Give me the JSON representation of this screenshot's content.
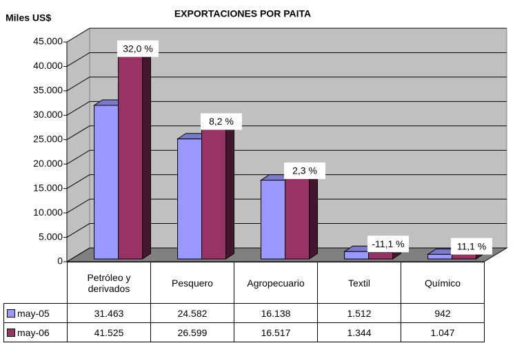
{
  "chart_data": {
    "type": "bar3d",
    "title": "EXPORTACIONES POR PAITA",
    "y_label": "Miles US$",
    "categories": [
      "Petróleo y derivados",
      "Pesquero",
      "Agropecuario",
      "Textil",
      "Químico"
    ],
    "series": [
      {
        "name": "may-05",
        "color": "#9999ff",
        "values": [
          31463,
          24582,
          16138,
          1512,
          942
        ],
        "value_labels": [
          "31.463",
          "24.582",
          "16.138",
          "1.512",
          "942"
        ]
      },
      {
        "name": "may-06",
        "color": "#993366",
        "values": [
          41525,
          26599,
          16517,
          1344,
          1047
        ],
        "value_labels": [
          "41.525",
          "26.599",
          "16.517",
          "1.344",
          "1.047"
        ]
      }
    ],
    "annotations": [
      "32,0 %",
      "8,2 %",
      "2,3 %",
      "-11,1 %",
      "11,1 %"
    ],
    "ylim": [
      0,
      45000
    ],
    "yticks": [
      0,
      {
        "value": 5000,
        "label": "5.000"
      },
      {
        "value": 10000,
        "label": "10.000"
      },
      {
        "value": 15000,
        "label": "15.000"
      },
      {
        "value": 20000,
        "label": "20.000"
      },
      {
        "value": 25000,
        "label": "25.000"
      },
      {
        "value": 30000,
        "label": "30.000"
      },
      {
        "value": 35000,
        "label": "35.000"
      },
      {
        "value": 40000,
        "label": "40.000"
      },
      {
        "value": 45000,
        "label": "45.000"
      }
    ],
    "grid": true
  }
}
